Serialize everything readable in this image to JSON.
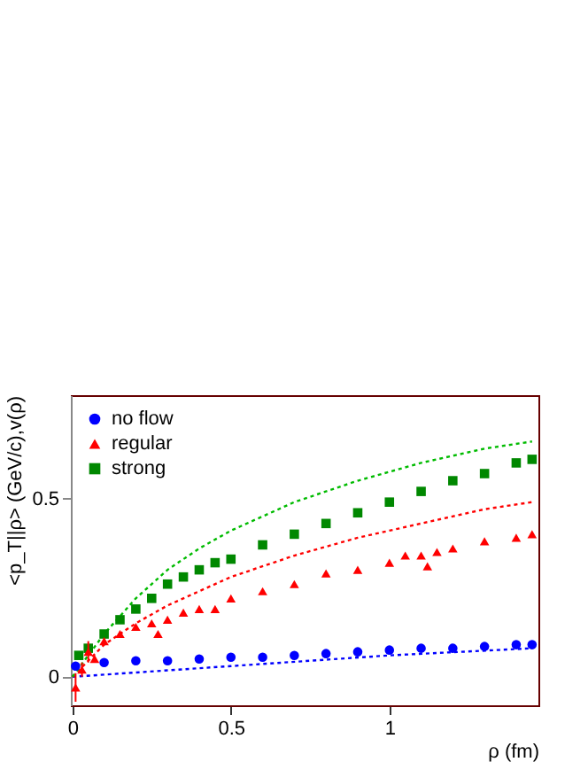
{
  "chart_data": {
    "type": "scatter",
    "xlabel": "ρ (fm)",
    "ylabel": "<p_T||ρ> (GeV/c),v(ρ)",
    "xlim": [
      -0.005,
      1.47
    ],
    "ylim": [
      -0.08,
      0.79
    ],
    "xticks": [
      0,
      0.5,
      1
    ],
    "yticks": [
      0,
      0.5
    ],
    "grid": false,
    "legend": "top left",
    "series": [
      {
        "name": "no flow",
        "marker": "circle",
        "color": "#0000ff",
        "x": [
          0.01,
          0.1,
          0.2,
          0.3,
          0.4,
          0.5,
          0.6,
          0.7,
          0.8,
          0.9,
          1.0,
          1.1,
          1.2,
          1.3,
          1.4,
          1.45
        ],
        "values": [
          0.03,
          0.04,
          0.045,
          0.045,
          0.05,
          0.055,
          0.055,
          0.06,
          0.065,
          0.07,
          0.075,
          0.08,
          0.08,
          0.085,
          0.09,
          0.09
        ]
      },
      {
        "name": "regular",
        "marker": "triangle",
        "color": "#ff0000",
        "x": [
          0.01,
          0.03,
          0.05,
          0.07,
          0.1,
          0.15,
          0.2,
          0.25,
          0.27,
          0.3,
          0.35,
          0.4,
          0.45,
          0.5,
          0.6,
          0.7,
          0.8,
          0.9,
          1.0,
          1.05,
          1.1,
          1.12,
          1.15,
          1.2,
          1.3,
          1.4,
          1.45
        ],
        "values": [
          -0.03,
          0.02,
          0.07,
          0.05,
          0.1,
          0.12,
          0.14,
          0.15,
          0.12,
          0.16,
          0.18,
          0.19,
          0.19,
          0.22,
          0.24,
          0.26,
          0.29,
          0.3,
          0.32,
          0.34,
          0.34,
          0.31,
          0.35,
          0.36,
          0.38,
          0.39,
          0.4
        ],
        "errors": [
          0.04,
          0.02,
          0.03,
          null,
          null,
          null,
          null,
          null,
          null,
          null,
          null,
          null,
          null,
          null,
          null,
          null,
          null,
          null,
          null,
          null,
          null,
          null,
          null,
          null,
          null,
          null,
          null
        ]
      },
      {
        "name": "strong",
        "marker": "square",
        "color": "#008800",
        "x": [
          0.02,
          0.05,
          0.1,
          0.15,
          0.2,
          0.25,
          0.3,
          0.35,
          0.4,
          0.45,
          0.5,
          0.6,
          0.7,
          0.8,
          0.9,
          1.0,
          1.1,
          1.2,
          1.3,
          1.4,
          1.45
        ],
        "values": [
          0.06,
          0.08,
          0.12,
          0.16,
          0.19,
          0.22,
          0.26,
          0.28,
          0.3,
          0.32,
          0.33,
          0.37,
          0.4,
          0.43,
          0.46,
          0.49,
          0.52,
          0.55,
          0.57,
          0.6,
          0.61
        ]
      },
      {
        "type": "line",
        "line_style": "dotted",
        "color": "#0000ff",
        "x": [
          0,
          0.5,
          1.0,
          1.45
        ],
        "values": [
          0.0,
          0.03,
          0.06,
          0.08
        ]
      },
      {
        "type": "line",
        "line_style": "dotted",
        "color": "#ff0000",
        "x": [
          0,
          0.1,
          0.2,
          0.3,
          0.5,
          0.7,
          0.9,
          1.1,
          1.3,
          1.45
        ],
        "values": [
          0,
          0.09,
          0.15,
          0.2,
          0.28,
          0.34,
          0.39,
          0.43,
          0.47,
          0.49
        ]
      },
      {
        "type": "line",
        "line_style": "dotted",
        "color": "#00bb00",
        "x": [
          0,
          0.1,
          0.2,
          0.3,
          0.4,
          0.5,
          0.7,
          0.9,
          1.1,
          1.3,
          1.45
        ],
        "values": [
          0,
          0.12,
          0.22,
          0.3,
          0.36,
          0.41,
          0.49,
          0.55,
          0.6,
          0.64,
          0.66
        ]
      }
    ]
  }
}
